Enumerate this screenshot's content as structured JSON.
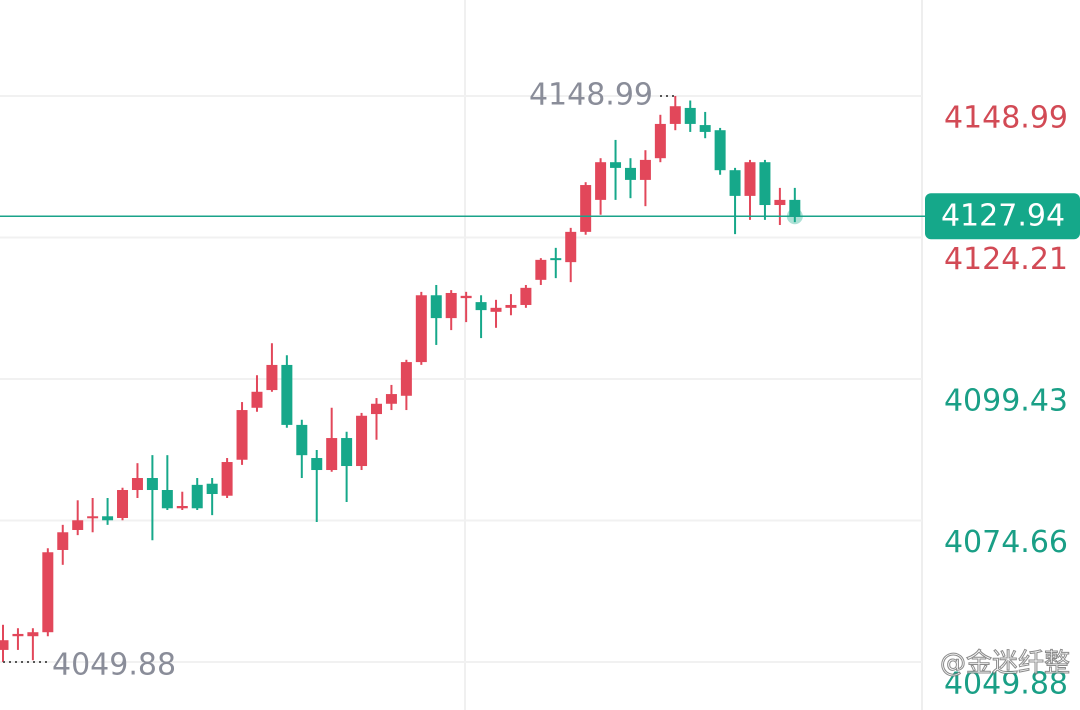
{
  "chart_data": {
    "type": "candlestick",
    "open": [
      4052.0,
      4054.4,
      4054.4,
      4055.1,
      4069.5,
      4073.0,
      4075.1,
      4075.4,
      4075.1,
      4080.0,
      4082.1,
      4080.0,
      4076.8,
      4080.9,
      4081.1,
      4079.0,
      4085.3,
      4094.4,
      4097.5,
      4101.9,
      4091.4,
      4085.6,
      4083.5,
      4089.1,
      4084.2,
      4093.3,
      4095.1,
      4096.5,
      4102.4,
      4114.1,
      4110.1,
      4113.6,
      4112.9,
      4111.2,
      4111.9,
      4112.4,
      4116.8,
      4120.6,
      4119.9,
      4125.2,
      4130.8,
      4137.4,
      4136.4,
      4134.3,
      4138.1,
      4144.1,
      4146.9,
      4143.9,
      4143.0,
      4136.0,
      4131.5,
      4137.4,
      4129.9,
      4130.8
    ],
    "high": [
      4056.4,
      4055.8,
      4055.8,
      4069.8,
      4073.9,
      4078.2,
      4078.6,
      4078.6,
      4080.4,
      4084.7,
      4086.1,
      4086.1,
      4079.7,
      4082.1,
      4082.1,
      4085.6,
      4095.4,
      4100.1,
      4105.7,
      4103.6,
      4092.3,
      4087.0,
      4094.4,
      4090.2,
      4093.5,
      4096.1,
      4098.4,
      4102.8,
      4114.7,
      4115.9,
      4115.0,
      4114.7,
      4114.1,
      4113.3,
      4114.3,
      4115.9,
      4120.6,
      4122.4,
      4125.9,
      4133.9,
      4138.1,
      4141.3,
      4138.1,
      4139.5,
      4145.7,
      4148.99,
      4148.2,
      4146.2,
      4143.4,
      4136.4,
      4137.8,
      4137.8,
      4132.9,
      4132.9
    ],
    "low": [
      4049.88,
      4052.0,
      4050.2,
      4054.4,
      4066.9,
      4072.1,
      4072.6,
      4073.9,
      4074.7,
      4078.6,
      4071.2,
      4076.5,
      4076.5,
      4076.5,
      4075.6,
      4078.6,
      4084.4,
      4093.7,
      4097.2,
      4090.9,
      4082.1,
      4074.4,
      4083.2,
      4077.9,
      4083.5,
      4088.8,
      4094.0,
      4094.0,
      4101.9,
      4105.4,
      4108.0,
      4109.4,
      4106.6,
      4108.4,
      4110.6,
      4111.9,
      4115.9,
      4117.1,
      4116.4,
      4124.7,
      4128.2,
      4130.8,
      4131.1,
      4129.7,
      4137.4,
      4143.0,
      4142.7,
      4141.6,
      4135.2,
      4124.8,
      4127.3,
      4127.3,
      4126.4,
      4126.9
    ],
    "close": [
      4053.7,
      4054.8,
      4055.1,
      4069.1,
      4072.6,
      4074.7,
      4075.4,
      4074.7,
      4080.0,
      4082.1,
      4080.0,
      4076.8,
      4077.2,
      4076.8,
      4079.3,
      4084.9,
      4094.0,
      4097.2,
      4101.9,
      4091.4,
      4086.1,
      4083.5,
      4089.1,
      4084.2,
      4093.0,
      4095.1,
      4096.8,
      4102.4,
      4114.1,
      4110.1,
      4114.5,
      4114.0,
      4111.5,
      4111.9,
      4112.4,
      4115.4,
      4120.3,
      4120.3,
      4125.2,
      4133.4,
      4137.4,
      4136.4,
      4134.3,
      4137.8,
      4144.1,
      4147.2,
      4144.1,
      4142.7,
      4136.0,
      4131.5,
      4137.4,
      4129.9,
      4130.8,
      4127.94
    ],
    "up_color": "#e2475a",
    "down_color": "#16a88a",
    "ylim": [
      4041.48,
      4165.8
    ],
    "yticks": [
      4148.99,
      4124.21,
      4099.43,
      4074.66,
      4049.88
    ],
    "ytick_colors": [
      "#d24a55",
      "#d24a55",
      "#1a9f86",
      "#1a9f86",
      "#1a9f86"
    ],
    "grid": true,
    "current_price": 4127.94,
    "high_label": 4148.99,
    "low_label": 4049.88,
    "watermark": "@金迷纤整"
  }
}
